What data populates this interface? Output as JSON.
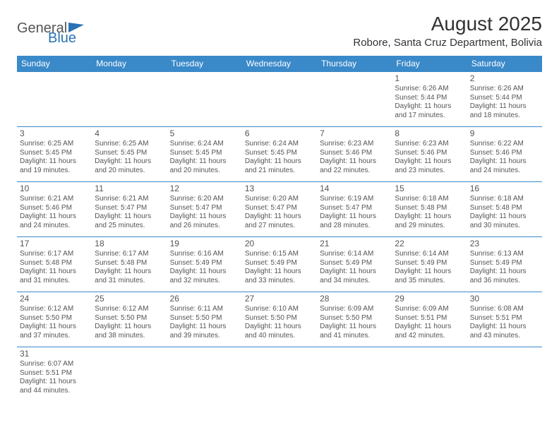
{
  "brand": {
    "part1": "General",
    "part2": "Blue"
  },
  "title": "August 2025",
  "location": "Robore, Santa Cruz Department, Bolivia",
  "colors": {
    "header_bg": "#3a89c9",
    "header_text": "#ffffff",
    "text": "#555555",
    "accent": "#2a72b5",
    "border": "#3a89c9"
  },
  "typography": {
    "title_fontsize": 28,
    "location_fontsize": 15,
    "dayheader_fontsize": 12,
    "cell_fontsize": 10
  },
  "layout": {
    "columns": 7,
    "rows": 6
  },
  "day_headers": [
    "Sunday",
    "Monday",
    "Tuesday",
    "Wednesday",
    "Thursday",
    "Friday",
    "Saturday"
  ],
  "labels": {
    "sunrise": "Sunrise:",
    "sunset": "Sunset:",
    "daylight": "Daylight:"
  },
  "weeks": [
    [
      null,
      null,
      null,
      null,
      null,
      {
        "day": "1",
        "sunrise": "6:26 AM",
        "sunset": "5:44 PM",
        "dl1": "11 hours",
        "dl2": "and 17 minutes."
      },
      {
        "day": "2",
        "sunrise": "6:26 AM",
        "sunset": "5:44 PM",
        "dl1": "11 hours",
        "dl2": "and 18 minutes."
      }
    ],
    [
      {
        "day": "3",
        "sunrise": "6:25 AM",
        "sunset": "5:45 PM",
        "dl1": "11 hours",
        "dl2": "and 19 minutes."
      },
      {
        "day": "4",
        "sunrise": "6:25 AM",
        "sunset": "5:45 PM",
        "dl1": "11 hours",
        "dl2": "and 20 minutes."
      },
      {
        "day": "5",
        "sunrise": "6:24 AM",
        "sunset": "5:45 PM",
        "dl1": "11 hours",
        "dl2": "and 20 minutes."
      },
      {
        "day": "6",
        "sunrise": "6:24 AM",
        "sunset": "5:45 PM",
        "dl1": "11 hours",
        "dl2": "and 21 minutes."
      },
      {
        "day": "7",
        "sunrise": "6:23 AM",
        "sunset": "5:46 PM",
        "dl1": "11 hours",
        "dl2": "and 22 minutes."
      },
      {
        "day": "8",
        "sunrise": "6:23 AM",
        "sunset": "5:46 PM",
        "dl1": "11 hours",
        "dl2": "and 23 minutes."
      },
      {
        "day": "9",
        "sunrise": "6:22 AM",
        "sunset": "5:46 PM",
        "dl1": "11 hours",
        "dl2": "and 24 minutes."
      }
    ],
    [
      {
        "day": "10",
        "sunrise": "6:21 AM",
        "sunset": "5:46 PM",
        "dl1": "11 hours",
        "dl2": "and 24 minutes."
      },
      {
        "day": "11",
        "sunrise": "6:21 AM",
        "sunset": "5:47 PM",
        "dl1": "11 hours",
        "dl2": "and 25 minutes."
      },
      {
        "day": "12",
        "sunrise": "6:20 AM",
        "sunset": "5:47 PM",
        "dl1": "11 hours",
        "dl2": "and 26 minutes."
      },
      {
        "day": "13",
        "sunrise": "6:20 AM",
        "sunset": "5:47 PM",
        "dl1": "11 hours",
        "dl2": "and 27 minutes."
      },
      {
        "day": "14",
        "sunrise": "6:19 AM",
        "sunset": "5:47 PM",
        "dl1": "11 hours",
        "dl2": "and 28 minutes."
      },
      {
        "day": "15",
        "sunrise": "6:18 AM",
        "sunset": "5:48 PM",
        "dl1": "11 hours",
        "dl2": "and 29 minutes."
      },
      {
        "day": "16",
        "sunrise": "6:18 AM",
        "sunset": "5:48 PM",
        "dl1": "11 hours",
        "dl2": "and 30 minutes."
      }
    ],
    [
      {
        "day": "17",
        "sunrise": "6:17 AM",
        "sunset": "5:48 PM",
        "dl1": "11 hours",
        "dl2": "and 31 minutes."
      },
      {
        "day": "18",
        "sunrise": "6:17 AM",
        "sunset": "5:48 PM",
        "dl1": "11 hours",
        "dl2": "and 31 minutes."
      },
      {
        "day": "19",
        "sunrise": "6:16 AM",
        "sunset": "5:49 PM",
        "dl1": "11 hours",
        "dl2": "and 32 minutes."
      },
      {
        "day": "20",
        "sunrise": "6:15 AM",
        "sunset": "5:49 PM",
        "dl1": "11 hours",
        "dl2": "and 33 minutes."
      },
      {
        "day": "21",
        "sunrise": "6:14 AM",
        "sunset": "5:49 PM",
        "dl1": "11 hours",
        "dl2": "and 34 minutes."
      },
      {
        "day": "22",
        "sunrise": "6:14 AM",
        "sunset": "5:49 PM",
        "dl1": "11 hours",
        "dl2": "and 35 minutes."
      },
      {
        "day": "23",
        "sunrise": "6:13 AM",
        "sunset": "5:49 PM",
        "dl1": "11 hours",
        "dl2": "and 36 minutes."
      }
    ],
    [
      {
        "day": "24",
        "sunrise": "6:12 AM",
        "sunset": "5:50 PM",
        "dl1": "11 hours",
        "dl2": "and 37 minutes."
      },
      {
        "day": "25",
        "sunrise": "6:12 AM",
        "sunset": "5:50 PM",
        "dl1": "11 hours",
        "dl2": "and 38 minutes."
      },
      {
        "day": "26",
        "sunrise": "6:11 AM",
        "sunset": "5:50 PM",
        "dl1": "11 hours",
        "dl2": "and 39 minutes."
      },
      {
        "day": "27",
        "sunrise": "6:10 AM",
        "sunset": "5:50 PM",
        "dl1": "11 hours",
        "dl2": "and 40 minutes."
      },
      {
        "day": "28",
        "sunrise": "6:09 AM",
        "sunset": "5:50 PM",
        "dl1": "11 hours",
        "dl2": "and 41 minutes."
      },
      {
        "day": "29",
        "sunrise": "6:09 AM",
        "sunset": "5:51 PM",
        "dl1": "11 hours",
        "dl2": "and 42 minutes."
      },
      {
        "day": "30",
        "sunrise": "6:08 AM",
        "sunset": "5:51 PM",
        "dl1": "11 hours",
        "dl2": "and 43 minutes."
      }
    ],
    [
      {
        "day": "31",
        "sunrise": "6:07 AM",
        "sunset": "5:51 PM",
        "dl1": "11 hours",
        "dl2": "and 44 minutes."
      },
      null,
      null,
      null,
      null,
      null,
      null
    ]
  ]
}
